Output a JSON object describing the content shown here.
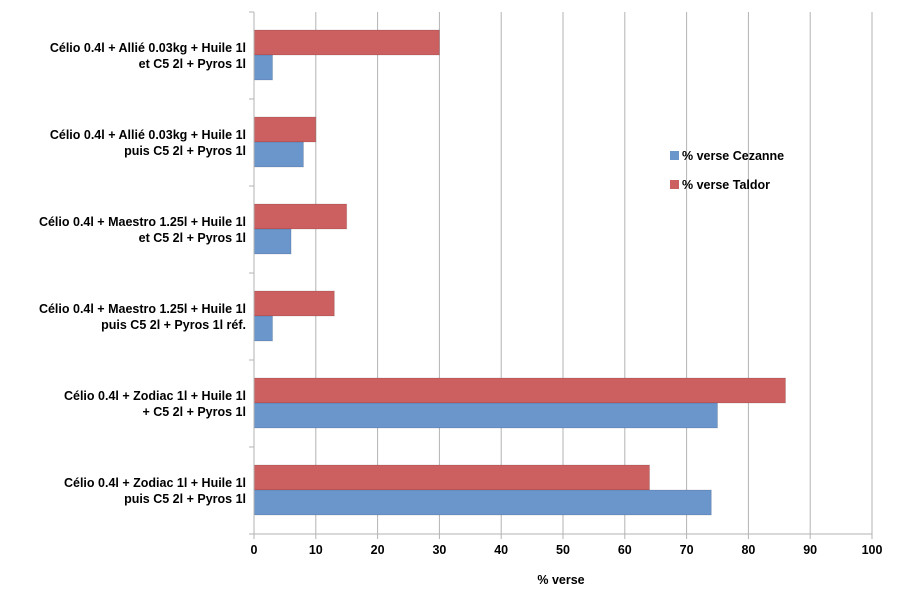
{
  "chart_data": {
    "type": "bar",
    "orientation": "horizontal",
    "categories": [
      [
        "Célio 0.4l + Allié 0.03kg + Huile 1l",
        "et C5 2l + Pyros 1l"
      ],
      [
        "Célio 0.4l + Allié 0.03kg + Huile 1l",
        "puis C5 2l + Pyros 1l"
      ],
      [
        "Célio 0.4l + Maestro 1.25l + Huile 1l",
        "et C5 2l + Pyros 1l"
      ],
      [
        "Célio 0.4l + Maestro 1.25l + Huile 1l",
        "puis C5 2l + Pyros 1l  réf."
      ],
      [
        "Célio 0.4l + Zodiac 1l + Huile 1l",
        "+ C5 2l + Pyros 1l"
      ],
      [
        "Célio 0.4l + Zodiac 1l + Huile 1l",
        "puis C5 2l + Pyros 1l"
      ]
    ],
    "series": [
      {
        "name": "% verse Cezanne",
        "color": "#6a96cc",
        "values": [
          3,
          8,
          6,
          3,
          75,
          74
        ]
      },
      {
        "name": "% verse Taldor",
        "color": "#cc5f5f",
        "values": [
          30,
          10,
          15,
          13,
          86,
          64
        ]
      }
    ],
    "xlabel": "% verse",
    "ylabel": "",
    "title": "",
    "xlim": [
      0,
      100
    ],
    "xticks": [
      0,
      10,
      20,
      30,
      40,
      50,
      60,
      70,
      80,
      90,
      100
    ],
    "grid": "vertical",
    "legend": "right"
  }
}
